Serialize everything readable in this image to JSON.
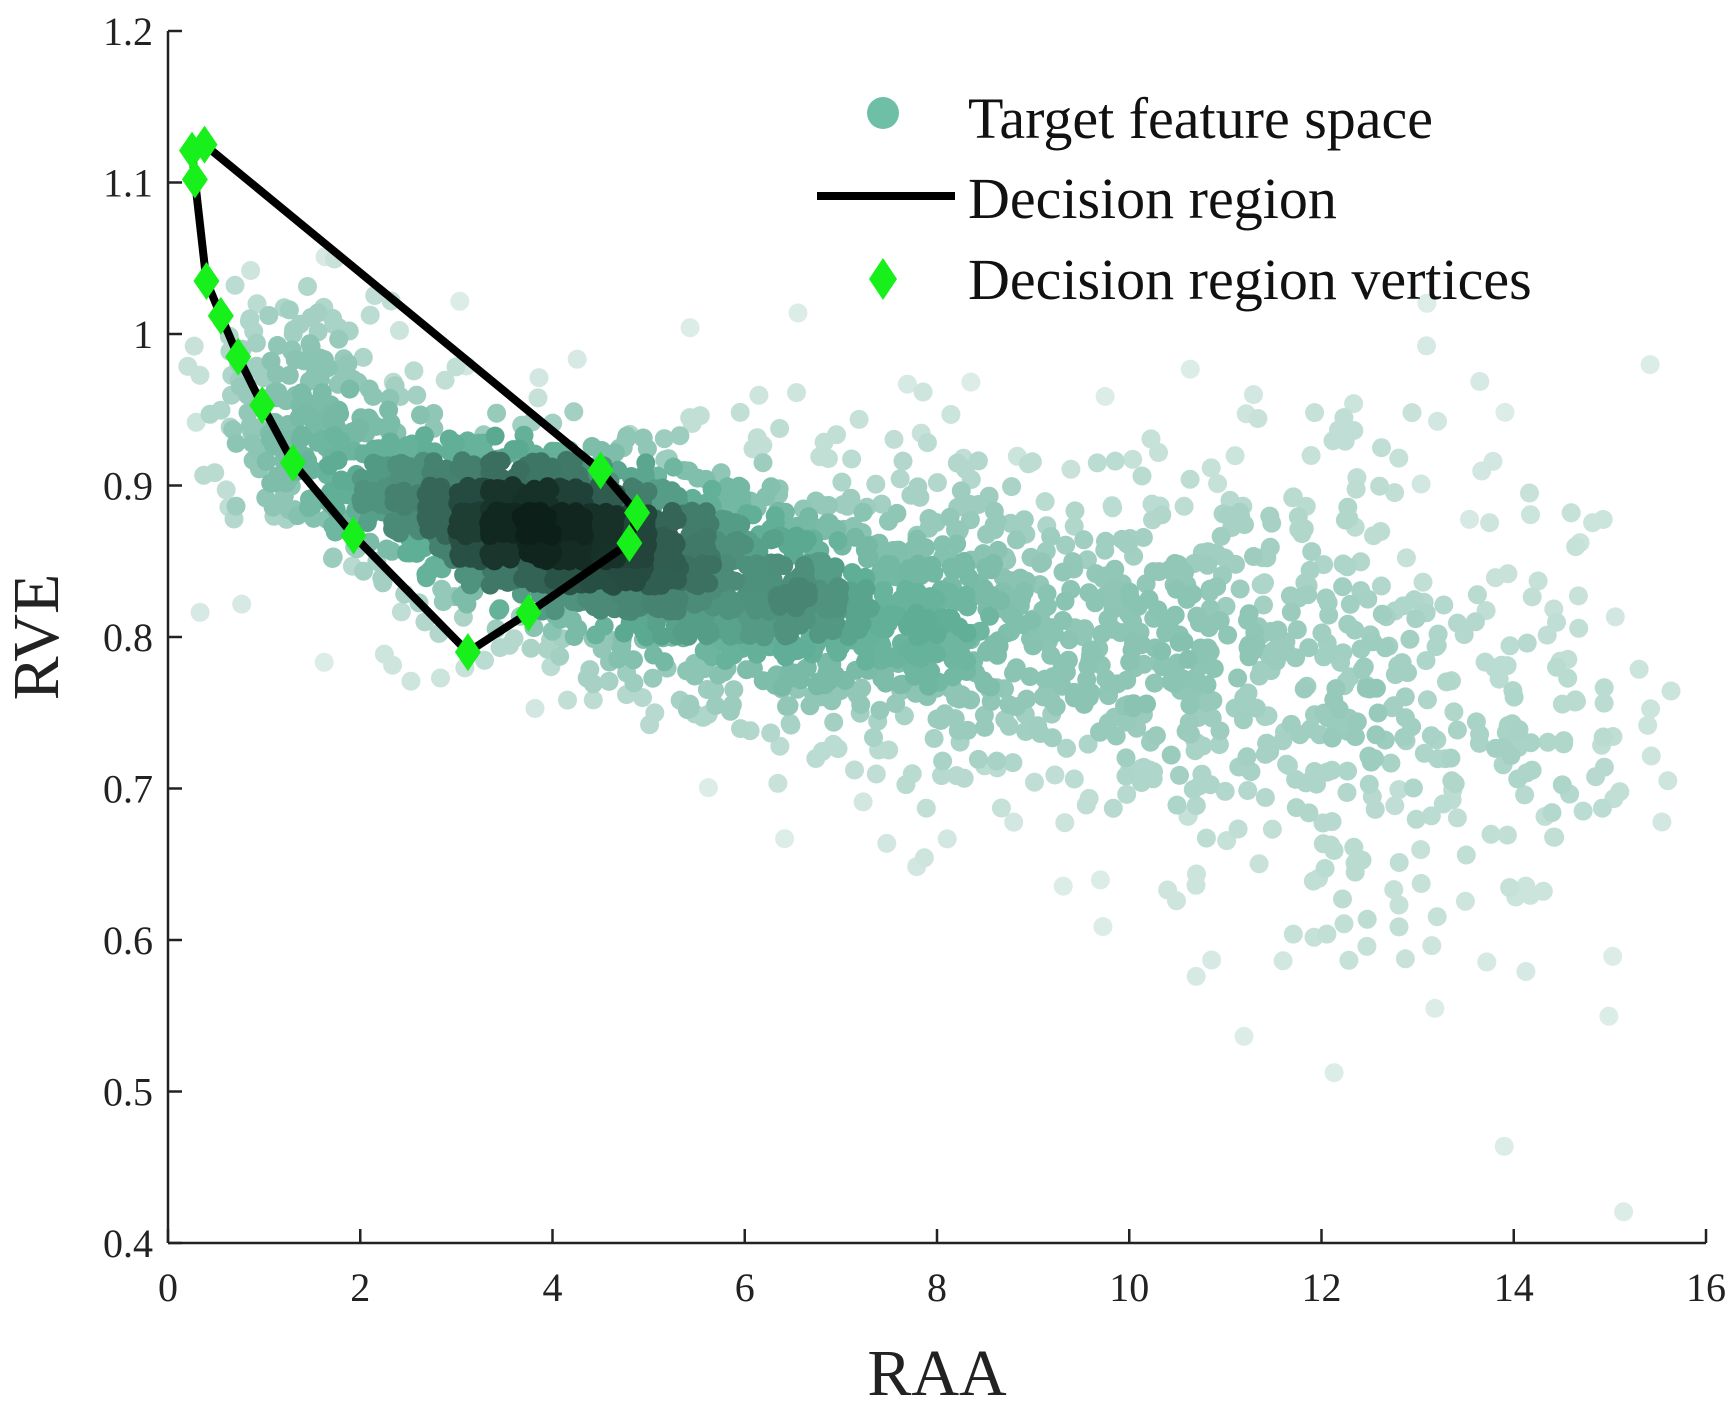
{
  "chart_data": {
    "type": "scatter",
    "title": "",
    "xlabel": "RAA",
    "ylabel": "RVE",
    "xlim": [
      0,
      16
    ],
    "ylim": [
      0.4,
      1.2
    ],
    "xticks": [
      "0",
      "2",
      "4",
      "6",
      "8",
      "10",
      "12",
      "14",
      "16"
    ],
    "yticks": [
      "0.4",
      "0.5",
      "0.6",
      "0.7",
      "0.8",
      "0.9",
      "1",
      "1.1",
      "1.2"
    ],
    "grid": false,
    "legend_position": "top-right",
    "legend": [
      {
        "label": "Target feature space",
        "marker": "circle"
      },
      {
        "label": "Decision region",
        "marker": "line"
      },
      {
        "label": "Decision region vertices",
        "marker": "diamond"
      }
    ],
    "colors": {
      "density_light": "#e8f2ef",
      "density_mid": "#5fae96",
      "density_dark": "#0c1f19",
      "legend_dot": "#6fbfa6",
      "region_line": "#000000",
      "vertex": "#17f01a"
    },
    "density_clusters": [
      {
        "cx": 3.8,
        "cy": 0.875,
        "sx": 1.0,
        "sy": 0.025,
        "n": 950
      },
      {
        "cx": 5.8,
        "cy": 0.835,
        "sx": 1.7,
        "sy": 0.04,
        "n": 900
      },
      {
        "cx": 9.5,
        "cy": 0.8,
        "sx": 2.6,
        "sy": 0.065,
        "n": 700
      },
      {
        "cx": 1.5,
        "cy": 0.95,
        "sx": 0.8,
        "sy": 0.04,
        "n": 220
      },
      {
        "cx": 12.5,
        "cy": 0.76,
        "sx": 1.6,
        "sy": 0.09,
        "n": 260
      }
    ],
    "decision_region": [
      [
        0.38,
        1.125
      ],
      [
        4.5,
        0.91
      ],
      [
        4.88,
        0.882
      ],
      [
        4.8,
        0.862
      ],
      [
        3.75,
        0.816
      ],
      [
        3.12,
        0.79
      ],
      [
        1.93,
        0.867
      ],
      [
        1.3,
        0.915
      ],
      [
        0.98,
        0.953
      ],
      [
        0.73,
        0.985
      ],
      [
        0.55,
        1.012
      ],
      [
        0.4,
        1.035
      ],
      [
        0.28,
        1.102
      ],
      [
        0.25,
        1.121
      ],
      [
        0.38,
        1.125
      ]
    ],
    "vertices": [
      [
        0.25,
        1.121
      ],
      [
        0.38,
        1.125
      ],
      [
        0.28,
        1.102
      ],
      [
        0.4,
        1.035
      ],
      [
        0.55,
        1.012
      ],
      [
        0.73,
        0.985
      ],
      [
        0.98,
        0.953
      ],
      [
        1.3,
        0.915
      ],
      [
        1.93,
        0.867
      ],
      [
        3.12,
        0.79
      ],
      [
        3.75,
        0.816
      ],
      [
        4.8,
        0.862
      ],
      [
        4.88,
        0.882
      ],
      [
        4.5,
        0.91
      ]
    ]
  }
}
